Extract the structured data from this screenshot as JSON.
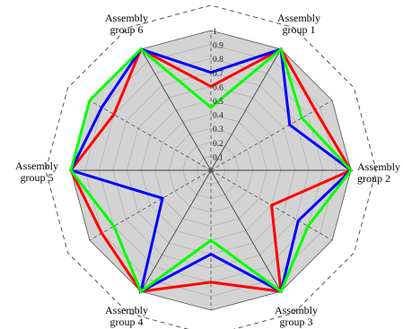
{
  "chart_data": {
    "type": "radar",
    "title": "",
    "radial_range": [
      0,
      1
    ],
    "radial_ticks": [
      "0",
      "0.1",
      "0.2",
      "0.3",
      "0.4",
      "0.5",
      "0.6",
      "0.7",
      "0.8",
      "0.9",
      "1"
    ],
    "axes": [
      {
        "lines": [
          "Assembly",
          "group 1"
        ]
      },
      {
        "lines": [
          "Assembly",
          "group 2"
        ]
      },
      {
        "lines": [
          "Assembly",
          "group 3"
        ]
      },
      {
        "lines": [
          "Assembly",
          "group 4"
        ]
      },
      {
        "lines": [
          "Assembly",
          "group 5"
        ]
      },
      {
        "lines": [
          "Assembly",
          "group 6"
        ]
      }
    ],
    "point_sequence": [
      "group 6",
      "mid 6-1",
      "group 1",
      "mid 1-2",
      "group 2",
      "mid 2-3",
      "group 3",
      "mid 3-4",
      "group 4",
      "mid 4-5",
      "group 5",
      "mid 5-6"
    ],
    "series": [
      {
        "color": "#ff0000",
        "values": [
          1.0,
          0.6,
          1.0,
          0.86,
          1.0,
          0.5,
          1.0,
          0.8,
          1.0,
          0.9,
          1.0,
          0.8
        ]
      },
      {
        "color": "#0000ff",
        "values": [
          1.0,
          0.7,
          1.0,
          0.65,
          1.0,
          0.72,
          1.0,
          0.6,
          1.0,
          0.4,
          1.0,
          0.9
        ]
      },
      {
        "color": "#00ff00",
        "values": [
          1.0,
          0.45,
          1.0,
          0.75,
          1.0,
          0.8,
          1.0,
          0.5,
          1.0,
          0.8,
          1.0,
          1.0
        ]
      }
    ],
    "fill_color": "#d3d3d3",
    "grid": true,
    "outer_polygon_value": 1.18
  }
}
